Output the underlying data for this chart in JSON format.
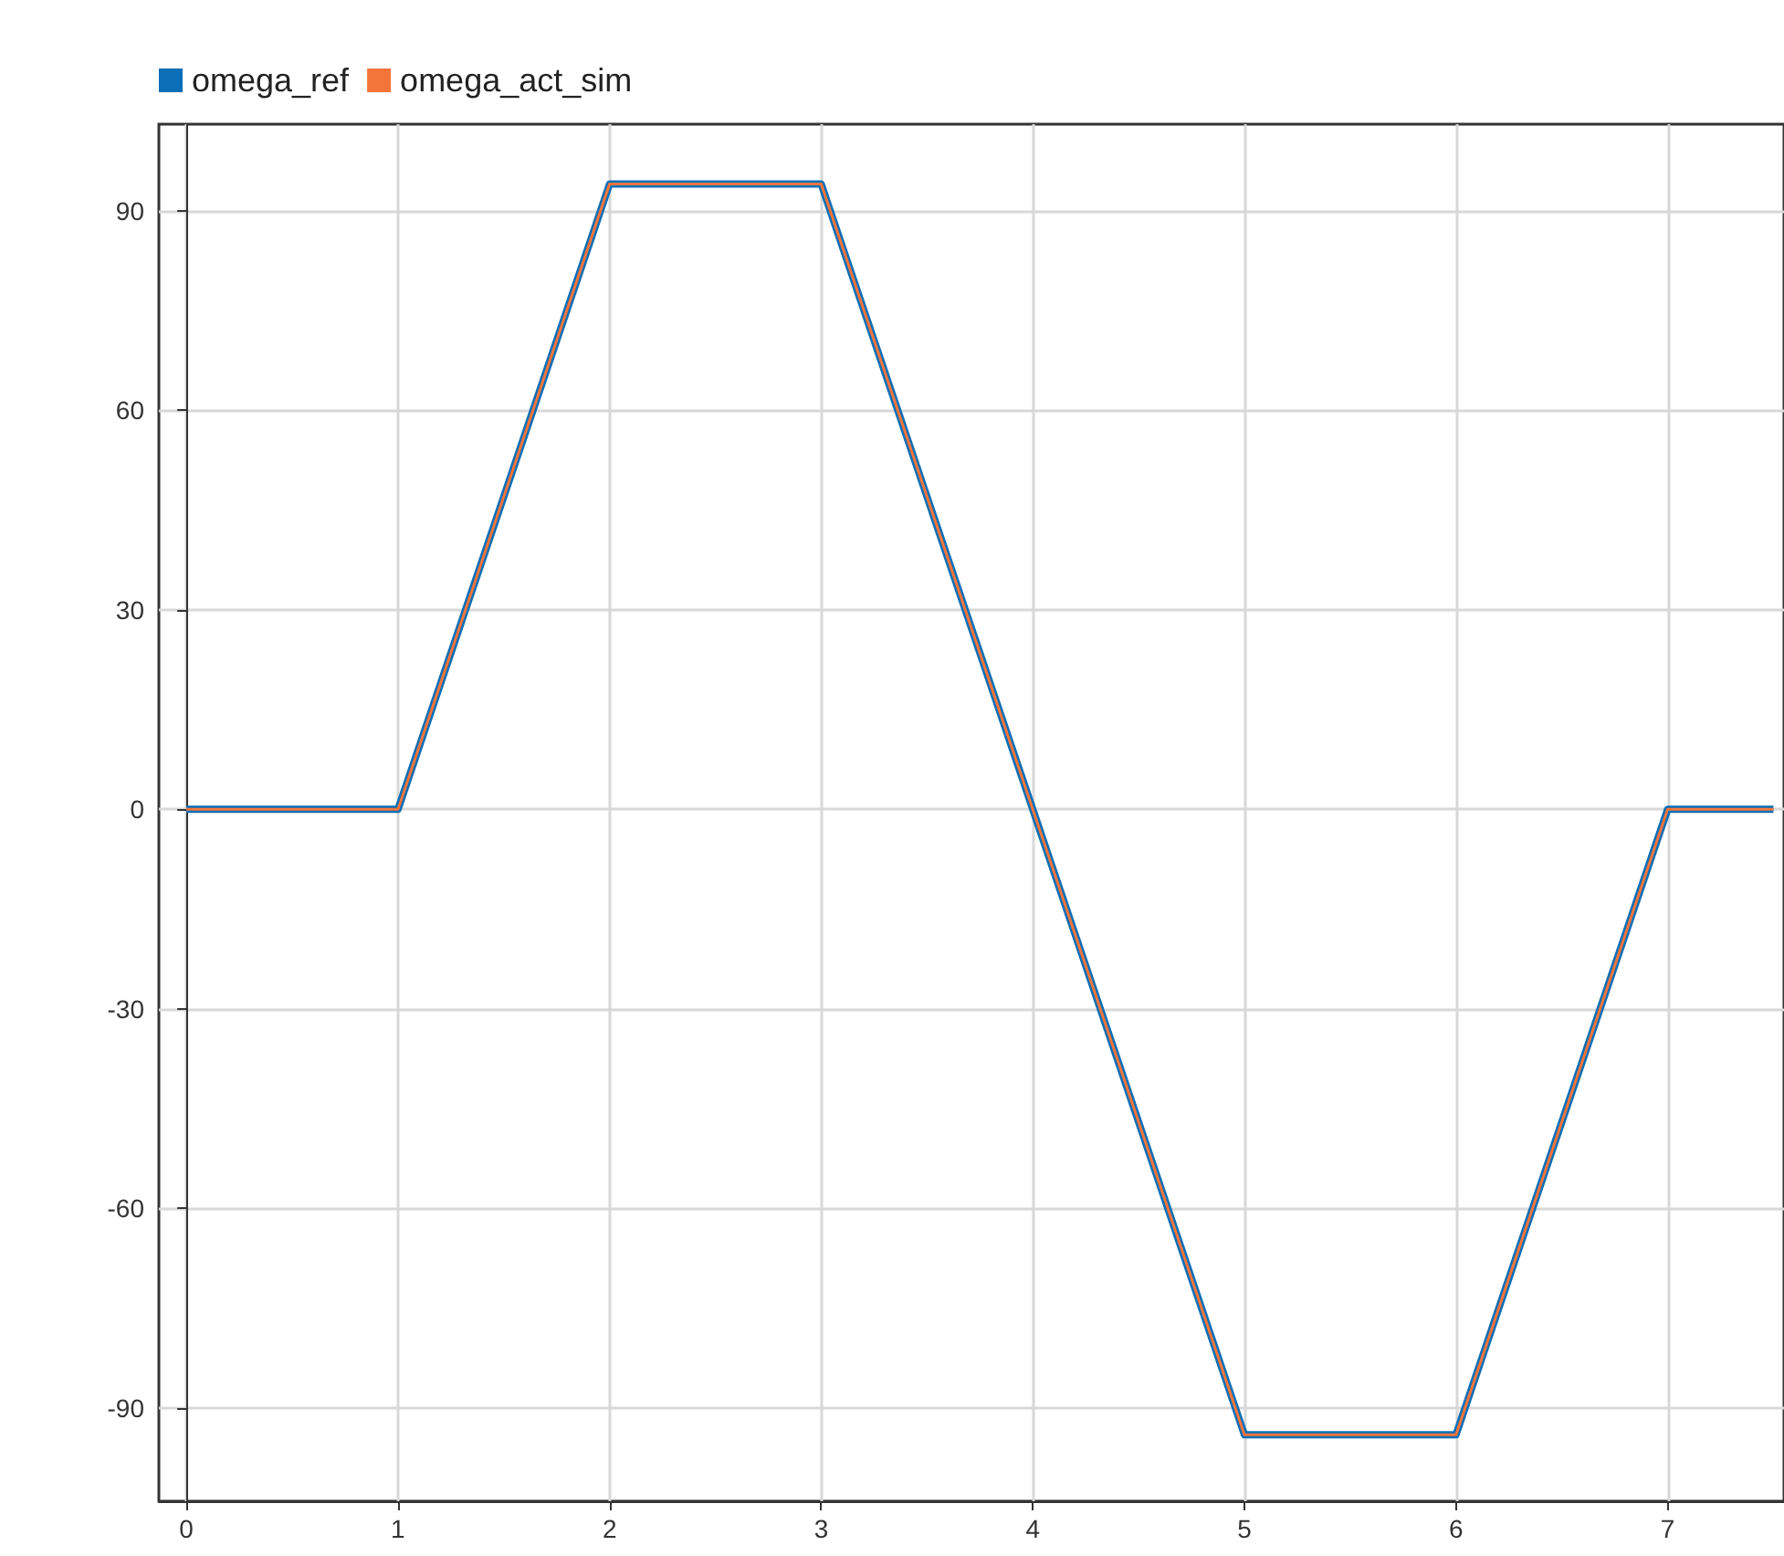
{
  "chart_data": {
    "type": "line",
    "x": [
      0,
      1,
      2,
      3,
      4,
      5,
      6,
      7,
      7.5
    ],
    "series": [
      {
        "name": "omega_ref",
        "color": "#0b6fb8",
        "values": [
          0,
          0,
          94,
          94,
          0,
          -94,
          -94,
          0,
          0
        ]
      },
      {
        "name": "omega_act_sim",
        "color": "#f4753a",
        "values": [
          0,
          0,
          94,
          94,
          0,
          -94,
          -94,
          0,
          0
        ]
      }
    ],
    "xlim": [
      -0.13,
      7.55
    ],
    "xticks": [
      0,
      1,
      2,
      3,
      4,
      5,
      6,
      7
    ],
    "ylim": [
      -104,
      103
    ],
    "yticks": [
      -90,
      -60,
      -30,
      0,
      30,
      60,
      90
    ],
    "grid": true,
    "legend": "top left",
    "marker": "none",
    "line_style": "solid"
  }
}
